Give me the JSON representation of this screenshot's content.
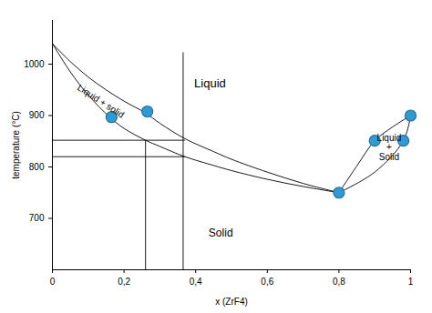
{
  "chart_data": {
    "type": "line",
    "x_label": "x (ZrF4)",
    "y_label": "temperature (°C)",
    "xlim": [
      0,
      1
    ],
    "ylim": [
      600,
      1085
    ],
    "xticks": [
      {
        "value": 0,
        "label": "0"
      },
      {
        "value": 0.2,
        "label": "0,2"
      },
      {
        "value": 0.4,
        "label": "0,4"
      },
      {
        "value": 0.6,
        "label": "0,6"
      },
      {
        "value": 0.8,
        "label": "0,8"
      },
      {
        "value": 1,
        "label": "1"
      }
    ],
    "yticks": [
      700,
      800,
      900,
      1000
    ],
    "grid": false,
    "curves": [
      {
        "x": [
          0,
          0.05,
          0.1,
          0.15,
          0.2,
          0.26,
          0.3,
          0.37,
          0.45,
          0.5,
          0.6,
          0.7,
          0.8
        ],
        "y": [
          1040,
          1005,
          975,
          950,
          928,
          905,
          885,
          855,
          830,
          815,
          790,
          768,
          750
        ]
      },
      {
        "x": [
          0,
          0.05,
          0.1,
          0.16,
          0.2,
          0.26,
          0.3,
          0.37,
          0.45,
          0.5,
          0.6,
          0.7,
          0.8
        ],
        "y": [
          1040,
          985,
          940,
          897,
          875,
          852,
          840,
          820,
          803,
          793,
          776,
          762,
          750
        ]
      },
      {
        "x": [
          0.8,
          0.85,
          0.9,
          0.95,
          1
        ],
        "y": [
          750,
          802,
          851,
          878,
          900
        ]
      },
      {
        "x": [
          0.8,
          0.9,
          0.98,
          1
        ],
        "y": [
          750,
          790,
          851,
          900
        ]
      }
    ],
    "guide_lines": [
      {
        "x1": 0,
        "y1": 852,
        "x2": 0.37,
        "y2": 852
      },
      {
        "x1": 0,
        "y1": 820,
        "x2": 0.37,
        "y2": 820
      },
      {
        "x1": 0.26,
        "y1": 600,
        "x2": 0.26,
        "y2": 852
      },
      {
        "x1": 0.365,
        "y1": 600,
        "x2": 0.365,
        "y2": 1023
      }
    ],
    "points": {
      "x": [
        0.165,
        0.265,
        0.8,
        0.9,
        0.98,
        1
      ],
      "y": [
        897,
        908,
        750,
        851,
        851,
        900
      ]
    },
    "color": "#2e9bd6",
    "marker": "circle",
    "annotations": [
      {
        "text": "Liquid",
        "x": 0.44,
        "y": 962
      },
      {
        "text": "Solid",
        "x": 0.47,
        "y": 672
      },
      {
        "text": "Liquid + solid",
        "x": 0.135,
        "y": 928
      },
      {
        "text": "Liquid\n+\nSolid",
        "x": 0.94,
        "y": 838
      }
    ]
  }
}
